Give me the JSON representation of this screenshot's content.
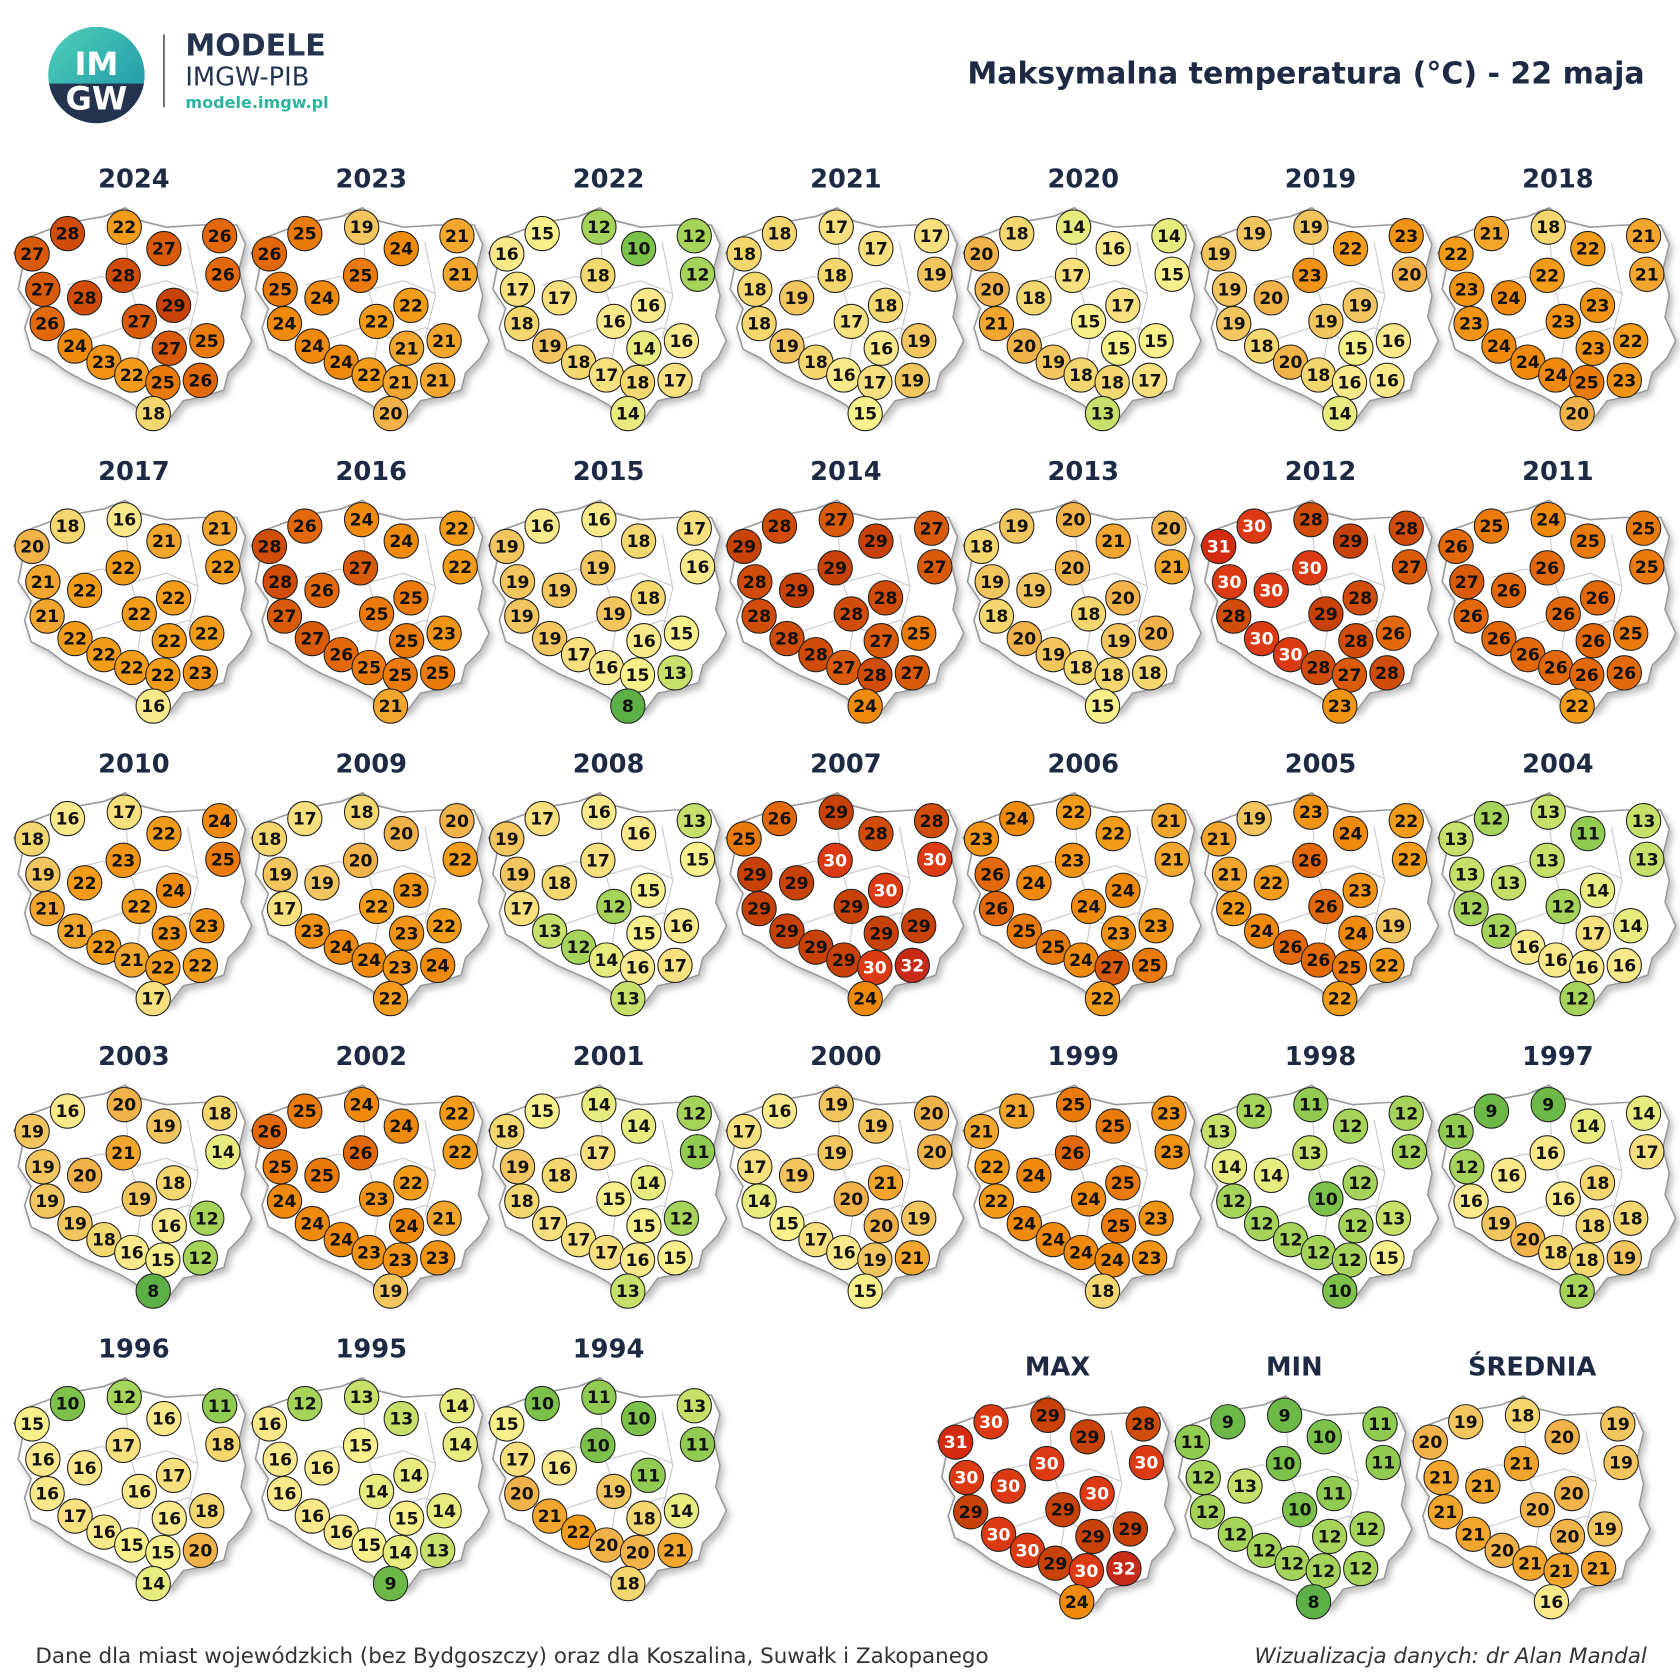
{
  "header": {
    "logo_top": "IM",
    "logo_bottom": "GW",
    "brand": "MODELE",
    "brand_sub": "IMGW-PIB",
    "url": "modele.imgw.pl",
    "title": "Maksymalna temperatura (°C) - 22 maja"
  },
  "panels": [
    {
      "title": "2024",
      "values": [
        28,
        22,
        27,
        26,
        27,
        26,
        28,
        27,
        28,
        29,
        26,
        27,
        27,
        25,
        24,
        23,
        22,
        25,
        26,
        18
      ]
    },
    {
      "title": "2023",
      "values": [
        25,
        19,
        24,
        21,
        26,
        21,
        25,
        25,
        24,
        22,
        24,
        22,
        21,
        21,
        24,
        24,
        22,
        21,
        21,
        20
      ]
    },
    {
      "title": "2022",
      "values": [
        15,
        12,
        10,
        12,
        16,
        12,
        18,
        17,
        17,
        16,
        18,
        16,
        14,
        16,
        19,
        18,
        17,
        18,
        17,
        14
      ]
    },
    {
      "title": "2021",
      "values": [
        18,
        17,
        17,
        17,
        18,
        19,
        18,
        18,
        19,
        18,
        18,
        17,
        16,
        19,
        19,
        18,
        16,
        17,
        19,
        15
      ]
    },
    {
      "title": "2020",
      "values": [
        18,
        14,
        16,
        14,
        20,
        15,
        17,
        20,
        18,
        17,
        21,
        15,
        15,
        15,
        20,
        19,
        18,
        18,
        17,
        13
      ]
    },
    {
      "title": "2019",
      "values": [
        19,
        19,
        22,
        23,
        19,
        20,
        23,
        19,
        20,
        19,
        19,
        19,
        15,
        16,
        18,
        20,
        18,
        16,
        16,
        14
      ]
    },
    {
      "title": "2018",
      "values": [
        21,
        18,
        22,
        21,
        22,
        21,
        22,
        23,
        24,
        23,
        23,
        23,
        23,
        22,
        24,
        24,
        24,
        25,
        23,
        20
      ]
    },
    {
      "title": "2017",
      "values": [
        18,
        16,
        21,
        21,
        20,
        22,
        22,
        21,
        22,
        22,
        21,
        22,
        22,
        22,
        22,
        22,
        22,
        22,
        23,
        16
      ]
    },
    {
      "title": "2016",
      "values": [
        26,
        24,
        24,
        22,
        28,
        22,
        27,
        28,
        26,
        25,
        27,
        25,
        25,
        23,
        27,
        26,
        25,
        25,
        25,
        21
      ]
    },
    {
      "title": "2015",
      "values": [
        16,
        16,
        18,
        17,
        19,
        16,
        19,
        19,
        19,
        18,
        19,
        19,
        16,
        15,
        19,
        17,
        16,
        15,
        13,
        8
      ]
    },
    {
      "title": "2014",
      "values": [
        28,
        27,
        29,
        27,
        29,
        27,
        29,
        28,
        29,
        28,
        28,
        28,
        27,
        25,
        28,
        28,
        27,
        28,
        27,
        24
      ]
    },
    {
      "title": "2013",
      "values": [
        19,
        20,
        21,
        20,
        18,
        21,
        20,
        19,
        19,
        20,
        18,
        18,
        19,
        20,
        20,
        19,
        18,
        18,
        18,
        15
      ]
    },
    {
      "title": "2012",
      "values": [
        30,
        28,
        29,
        28,
        31,
        27,
        30,
        30,
        30,
        28,
        28,
        29,
        28,
        26,
        30,
        30,
        28,
        27,
        28,
        23
      ]
    },
    {
      "title": "2011",
      "values": [
        25,
        24,
        25,
        25,
        26,
        25,
        26,
        27,
        26,
        26,
        26,
        26,
        26,
        25,
        26,
        26,
        26,
        26,
        26,
        22
      ]
    },
    {
      "title": "2010",
      "values": [
        16,
        17,
        22,
        24,
        18,
        25,
        23,
        19,
        22,
        24,
        21,
        22,
        23,
        23,
        21,
        22,
        21,
        22,
        22,
        17
      ]
    },
    {
      "title": "2009",
      "values": [
        17,
        18,
        20,
        20,
        18,
        22,
        20,
        19,
        19,
        23,
        17,
        22,
        23,
        22,
        23,
        24,
        24,
        23,
        24,
        22
      ]
    },
    {
      "title": "2008",
      "values": [
        17,
        16,
        16,
        13,
        19,
        15,
        17,
        19,
        18,
        15,
        17,
        12,
        15,
        16,
        13,
        12,
        14,
        16,
        17,
        13
      ]
    },
    {
      "title": "2007",
      "values": [
        26,
        29,
        28,
        28,
        25,
        30,
        30,
        29,
        29,
        30,
        29,
        29,
        29,
        29,
        29,
        29,
        29,
        30,
        32,
        24
      ]
    },
    {
      "title": "2006",
      "values": [
        24,
        22,
        22,
        21,
        23,
        21,
        23,
        26,
        24,
        24,
        26,
        24,
        23,
        23,
        25,
        25,
        24,
        27,
        25,
        22
      ]
    },
    {
      "title": "2005",
      "values": [
        19,
        23,
        24,
        22,
        21,
        22,
        26,
        21,
        22,
        23,
        22,
        26,
        24,
        19,
        24,
        26,
        26,
        25,
        22,
        22
      ]
    },
    {
      "title": "2004",
      "values": [
        12,
        13,
        11,
        13,
        13,
        13,
        13,
        13,
        13,
        14,
        12,
        12,
        17,
        14,
        12,
        16,
        16,
        16,
        16,
        12
      ]
    },
    {
      "title": "2003",
      "values": [
        16,
        20,
        19,
        18,
        19,
        14,
        21,
        19,
        20,
        18,
        19,
        19,
        16,
        12,
        19,
        18,
        16,
        15,
        12,
        8
      ]
    },
    {
      "title": "2002",
      "values": [
        25,
        24,
        24,
        22,
        26,
        22,
        26,
        25,
        25,
        22,
        24,
        23,
        24,
        21,
        24,
        24,
        23,
        23,
        23,
        19
      ]
    },
    {
      "title": "2001",
      "values": [
        15,
        14,
        14,
        12,
        18,
        11,
        17,
        19,
        18,
        14,
        18,
        15,
        15,
        12,
        17,
        17,
        17,
        16,
        15,
        13
      ]
    },
    {
      "title": "2000",
      "values": [
        16,
        19,
        19,
        20,
        17,
        20,
        19,
        17,
        19,
        21,
        14,
        20,
        20,
        19,
        15,
        17,
        16,
        19,
        21,
        15
      ]
    },
    {
      "title": "1999",
      "values": [
        21,
        25,
        25,
        23,
        21,
        23,
        26,
        22,
        24,
        25,
        22,
        24,
        25,
        23,
        24,
        24,
        24,
        24,
        23,
        18
      ]
    },
    {
      "title": "1998",
      "values": [
        12,
        11,
        12,
        12,
        13,
        12,
        13,
        14,
        14,
        12,
        12,
        10,
        12,
        13,
        12,
        12,
        12,
        12,
        15,
        10
      ]
    },
    {
      "title": "1997",
      "values": [
        9,
        9,
        14,
        14,
        11,
        17,
        16,
        12,
        16,
        18,
        16,
        16,
        18,
        18,
        19,
        20,
        18,
        18,
        19,
        12
      ]
    },
    {
      "title": "1996",
      "values": [
        10,
        12,
        16,
        11,
        15,
        18,
        17,
        16,
        16,
        17,
        16,
        16,
        16,
        18,
        17,
        16,
        15,
        15,
        20,
        14
      ]
    },
    {
      "title": "1995",
      "values": [
        12,
        13,
        13,
        14,
        16,
        14,
        15,
        16,
        16,
        14,
        16,
        14,
        15,
        14,
        16,
        16,
        15,
        14,
        13,
        9
      ]
    },
    {
      "title": "1994",
      "values": [
        10,
        11,
        10,
        13,
        15,
        11,
        10,
        17,
        16,
        11,
        20,
        19,
        18,
        14,
        21,
        22,
        20,
        20,
        21,
        18
      ]
    }
  ],
  "summary": [
    {
      "title": "MAX",
      "values": [
        30,
        29,
        29,
        28,
        31,
        30,
        30,
        30,
        30,
        30,
        29,
        29,
        29,
        29,
        30,
        30,
        29,
        30,
        32,
        24
      ]
    },
    {
      "title": "MIN",
      "values": [
        9,
        9,
        10,
        11,
        11,
        11,
        10,
        12,
        13,
        11,
        12,
        10,
        12,
        12,
        12,
        12,
        12,
        12,
        12,
        8
      ]
    },
    {
      "title": "ŚREDNIA",
      "values": [
        19,
        18,
        20,
        19,
        20,
        19,
        21,
        21,
        21,
        20,
        21,
        20,
        20,
        19,
        21,
        20,
        21,
        21,
        21,
        16
      ]
    }
  ],
  "footer": {
    "note": "Dane dla miast wojewódzkich (bez Bydgoszczy) oraz dla Koszalina, Suwałk i Zakopanego",
    "credit": "Wizualizacja danych: dr Alan Mandal"
  }
}
